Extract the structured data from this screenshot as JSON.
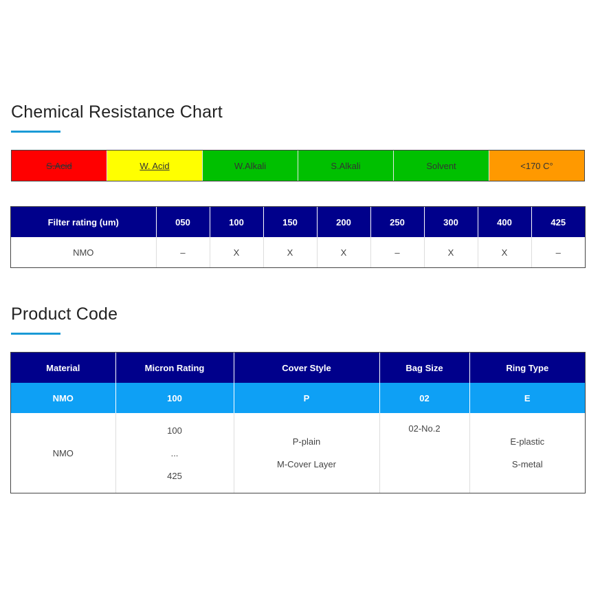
{
  "chemical_section": {
    "title": "Chemical Resistance Chart",
    "bar": [
      {
        "label": "S.Acid",
        "color": "#ff0000",
        "style": "strikethrough"
      },
      {
        "label": "W. Acid",
        "color": "#ffff00",
        "style": "underline"
      },
      {
        "label": "W.Alkali",
        "color": "#00c000",
        "style": "normal"
      },
      {
        "label": "S.Alkali",
        "color": "#00c000",
        "style": "normal"
      },
      {
        "label": "Solvent",
        "color": "#00c000",
        "style": "normal"
      },
      {
        "label": "<170 C°",
        "color": "#ff9900",
        "style": "normal"
      }
    ]
  },
  "rating_table": {
    "header_label": "Filter rating (um)",
    "columns": [
      "050",
      "100",
      "150",
      "200",
      "250",
      "300",
      "400",
      "425"
    ],
    "row_label": "NMO",
    "values": [
      "–",
      "X",
      "X",
      "X",
      "–",
      "X",
      "X",
      "–"
    ]
  },
  "product_section": {
    "title": "Product Code",
    "headers": [
      "Material",
      "Micron Rating",
      "Cover Style",
      "Bag Size",
      "Ring Type"
    ],
    "code_row": [
      "NMO",
      "100",
      "P",
      "02",
      "E"
    ],
    "detail": {
      "material": "NMO",
      "micron": [
        "100",
        "...",
        "425"
      ],
      "cover": [
        "P-plain",
        "M-Cover Layer"
      ],
      "bag": [
        "02-No.2"
      ],
      "ring": [
        "E-plastic",
        "S-metal"
      ]
    }
  }
}
